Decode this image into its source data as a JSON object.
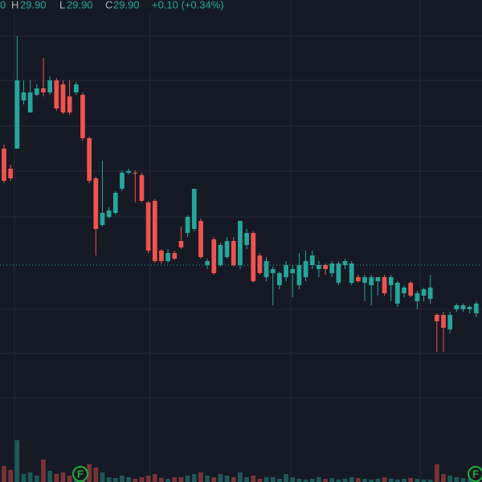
{
  "chart_data": {
    "type": "candlestick",
    "header": {
      "open_value": "0",
      "high_label": "H",
      "high_value": "29.90",
      "low_label": "L",
      "low_value": "29.90",
      "close_label": "C",
      "close_value": "29.90",
      "change": "+0.10 (+0.34%)"
    },
    "up_color": "#26a69a",
    "down_color": "#ef5350",
    "ylim": [
      0,
      600
    ],
    "price_line": 270,
    "open": [
      415,
      390,
      415,
      475,
      460,
      482,
      490,
      485,
      500,
      495,
      480,
      485,
      482,
      428,
      378,
      320,
      330,
      335,
      365,
      385,
      385,
      382,
      348,
      350,
      288,
      275,
      285,
      300,
      310,
      315,
      325,
      270,
      302,
      270,
      280,
      300,
      270,
      295,
      310,
      282,
      255,
      260,
      245,
      255,
      260,
      245,
      255,
      270,
      265,
      270,
      260,
      248,
      270,
      248,
      255,
      248,
      245,
      250,
      255,
      245,
      222,
      235,
      248,
      225,
      232,
      228,
      208,
      208,
      190,
      215,
      215,
      215,
      210
    ],
    "high": [
      420,
      395,
      555,
      500,
      500,
      495,
      528,
      505,
      503,
      500,
      500,
      498,
      485,
      430,
      380,
      400,
      342,
      362,
      388,
      390,
      388,
      385,
      350,
      352,
      290,
      290,
      288,
      318,
      332,
      365,
      328,
      278,
      305,
      298,
      305,
      305,
      325,
      315,
      312,
      285,
      280,
      268,
      262,
      275,
      270,
      285,
      288,
      288,
      275,
      272,
      275,
      275,
      278,
      275,
      258,
      258,
      258,
      255,
      258,
      258,
      250,
      245,
      250,
      238,
      242,
      258,
      210,
      212,
      212,
      222,
      222,
      220,
      225
    ],
    "low": [
      372,
      375,
      415,
      470,
      460,
      480,
      480,
      482,
      462,
      458,
      457,
      482,
      425,
      372,
      282,
      318,
      328,
      333,
      362,
      383,
      348,
      348,
      285,
      273,
      272,
      273,
      276,
      290,
      305,
      312,
      278,
      265,
      258,
      268,
      278,
      268,
      265,
      290,
      248,
      258,
      250,
      220,
      240,
      250,
      230,
      240,
      250,
      265,
      255,
      258,
      255,
      245,
      265,
      245,
      248,
      225,
      220,
      232,
      232,
      225,
      218,
      230,
      230,
      215,
      225,
      222,
      162,
      162,
      185,
      212,
      212,
      210,
      205
    ],
    "close": [
      375,
      378,
      500,
      485,
      485,
      490,
      485,
      500,
      465,
      460,
      460,
      495,
      428,
      375,
      315,
      335,
      338,
      360,
      385,
      387,
      384,
      350,
      288,
      275,
      275,
      285,
      278,
      292,
      330,
      365,
      280,
      275,
      260,
      295,
      300,
      270,
      325,
      310,
      250,
      260,
      275,
      265,
      260,
      270,
      265,
      270,
      275,
      282,
      270,
      265,
      272,
      272,
      275,
      272,
      250,
      255,
      255,
      255,
      235,
      255,
      248,
      242,
      232,
      235,
      240,
      242,
      200,
      192,
      208,
      220,
      220,
      218,
      222
    ],
    "vlim": [
      0,
      60
    ],
    "volume": [
      20,
      15,
      52,
      10,
      12,
      8,
      28,
      14,
      10,
      12,
      8,
      6,
      10,
      22,
      18,
      12,
      6,
      5,
      8,
      6,
      4,
      6,
      8,
      10,
      5,
      4,
      6,
      6,
      8,
      10,
      12,
      8,
      6,
      10,
      8,
      6,
      12,
      6,
      8,
      4,
      6,
      6,
      4,
      10,
      6,
      4,
      3,
      4,
      6,
      4,
      5,
      3,
      4,
      6,
      5,
      4,
      3,
      4,
      6,
      4,
      3,
      4,
      5,
      4,
      3,
      3,
      22,
      10,
      8,
      6,
      5,
      4,
      6
    ],
    "events": [
      {
        "label": "F"
      },
      {
        "label": "F"
      }
    ]
  }
}
